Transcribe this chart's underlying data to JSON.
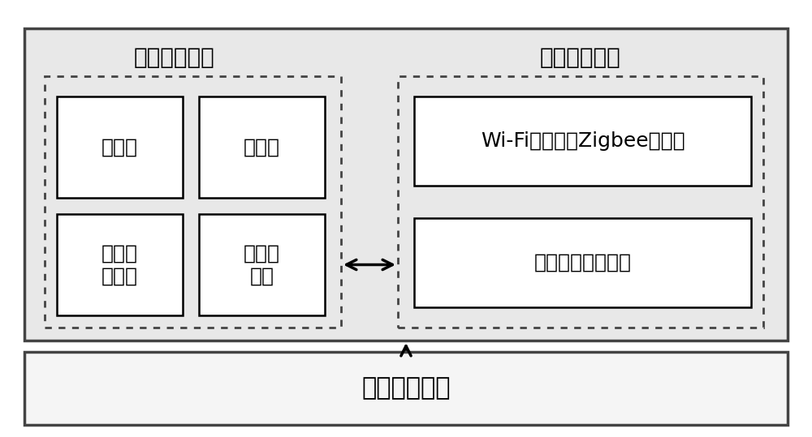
{
  "white": "#ffffff",
  "light_gray": "#e8e8e8",
  "dark_gray": "#555555",
  "black": "#000000",
  "title_main": "核心处理模块",
  "title_wireless": "无线通信模块",
  "title_energy": "能量供应模块",
  "box_processor": "处理器",
  "box_storage": "存储器",
  "box_network": "网络切\n换模块",
  "box_data": "通用数\n据层",
  "box_wifi": "Wi-Fi、蓝牙、Zigbee等模块",
  "box_other": "其他无线通信模块",
  "font_size_title": 20,
  "font_size_box": 18,
  "font_size_energy": 22
}
